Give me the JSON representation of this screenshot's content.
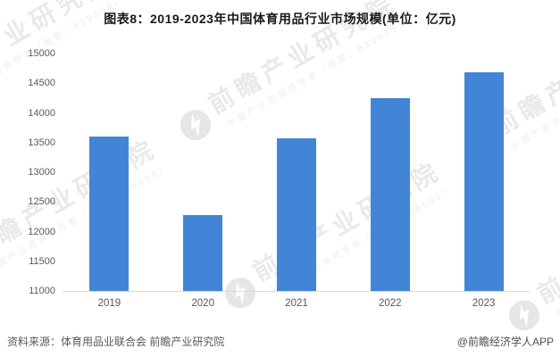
{
  "title": "图表8：2019-2023年中国体育用品行业市场规模(单位：亿元)",
  "chart_data": {
    "type": "bar",
    "title": "图表8：2019-2023年中国体育用品行业市场规模(单位：亿元)",
    "categories": [
      "2019",
      "2020",
      "2021",
      "2022",
      "2023"
    ],
    "values": [
      13600,
      12280,
      13570,
      14250,
      14690
    ],
    "xlabel": "",
    "ylabel": "",
    "unit": "亿元",
    "ylim": [
      11000,
      15000
    ],
    "yticks": [
      11000,
      11500,
      12000,
      12500,
      13000,
      13500,
      14000,
      14500,
      15000
    ],
    "grid": false,
    "legend": "none",
    "bar_color": "#4285D7",
    "axis_line_color": "#d9d9d9",
    "tick_label_color": "#595959"
  },
  "footer": {
    "source": "资料来源：体育用品业联合会 前瞻产业研究院",
    "credit": "@前瞻经济学人APP"
  },
  "watermark": {
    "icon": "qianzhan-logo",
    "big_text": "前瞻产业研究院",
    "small_text": "中国产业咨询领导者（股票：839599）"
  }
}
